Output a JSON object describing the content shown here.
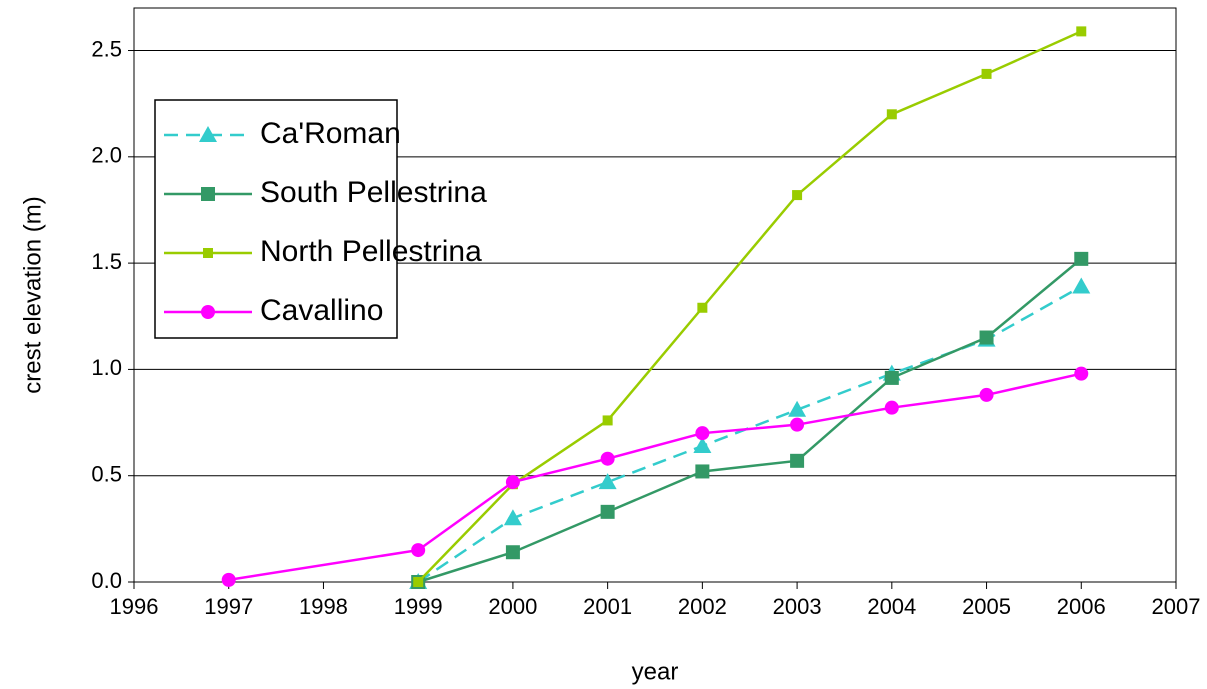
{
  "chart_data": {
    "type": "line",
    "x_label": "year",
    "y_label": "crest elevation (m)",
    "x": [
      1997,
      1999,
      2000,
      2001,
      2002,
      2003,
      2004,
      2005,
      2006
    ],
    "series": [
      {
        "name": "Ca'Roman",
        "color": "#33cccc",
        "marker": "triangle",
        "dashed": true,
        "values": [
          null,
          0,
          0.3,
          0.47,
          0.64,
          0.81,
          0.98,
          1.14,
          1.39
        ]
      },
      {
        "name": "South Pellestrina",
        "color": "#339966",
        "marker": "square",
        "values": [
          null,
          0,
          0.14,
          0.33,
          0.52,
          0.57,
          0.96,
          1.15,
          1.52
        ]
      },
      {
        "name": "North Pellestrina",
        "color": "#99cc00",
        "marker": "small-square",
        "values": [
          null,
          0,
          0.46,
          0.76,
          1.29,
          1.82,
          2.2,
          2.39,
          2.59
        ]
      },
      {
        "name": "Cavallino",
        "color": "#ff00ff",
        "marker": "circle",
        "values": [
          0.01,
          0.15,
          0.47,
          0.58,
          0.7,
          0.74,
          0.82,
          0.88,
          0.98
        ]
      }
    ],
    "xlim": [
      1996,
      2007
    ],
    "xticks": [
      1996,
      1997,
      1998,
      1999,
      2000,
      2001,
      2002,
      2003,
      2004,
      2005,
      2006,
      2007
    ],
    "ylim": [
      0,
      2.7
    ],
    "yticks": [
      {
        "value": 0,
        "label": "0.0"
      },
      0.5,
      {
        "value": 1,
        "label": "1.0"
      },
      1.5,
      {
        "value": 2,
        "label": "2.0"
      },
      2.5
    ],
    "grid": true,
    "legend": "upper left"
  }
}
